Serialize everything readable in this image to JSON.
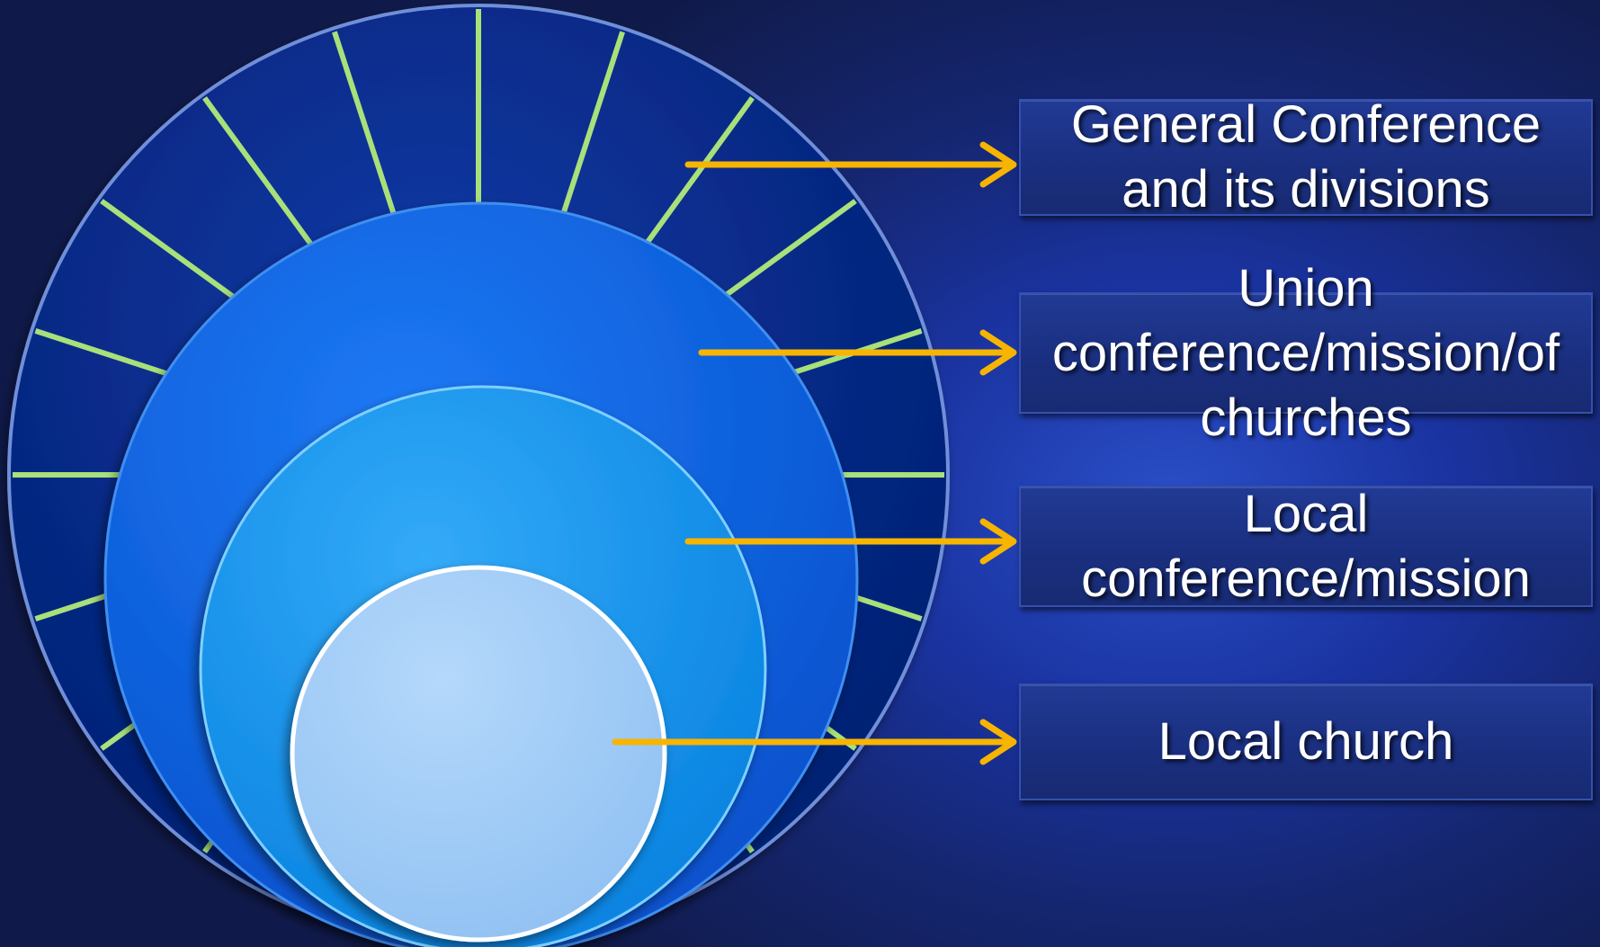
{
  "diagram": {
    "labels": [
      "General Conference\nand its divisions",
      "Union\nconference/mission/of\nchurches",
      "Local\nconference/mission",
      "Local church"
    ]
  },
  "colors": {
    "outer_ring": "#052a8a",
    "second_circle": "#0a62e0",
    "third_circle": "#0e97f2",
    "inner_circle": "#9fcbf7",
    "spokes": "#a8e07a",
    "arrows": "#f7b400"
  }
}
